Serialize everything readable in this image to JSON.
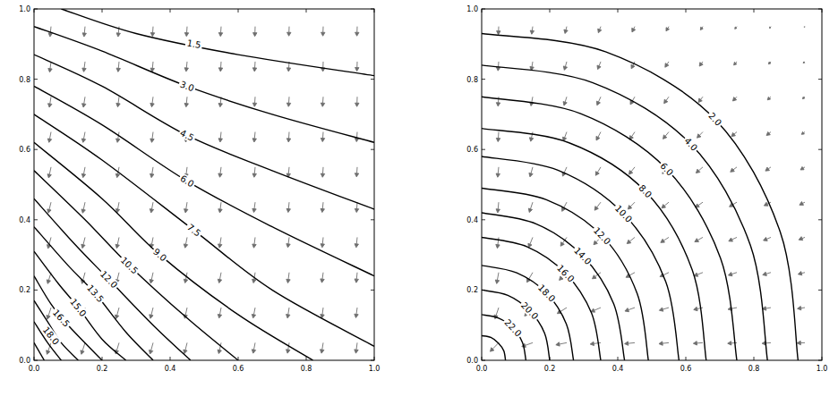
{
  "chart_data": [
    {
      "type": "contour",
      "color": "#000000",
      "xlim": [
        0,
        1
      ],
      "ylim": [
        0,
        1
      ],
      "xticks": [
        {
          "value": 0,
          "label": "0.0"
        },
        0.2,
        0.4,
        0.6,
        0.8,
        {
          "value": 1,
          "label": "1.0"
        }
      ],
      "yticks": [
        {
          "value": 0,
          "label": "0.0"
        },
        0.2,
        0.4,
        0.6,
        0.8,
        {
          "value": 1,
          "label": "1.0"
        }
      ],
      "contours": [
        {
          "label": "1.5",
          "label_at": [
            0.47,
            0.9
          ],
          "x": [
            0.08,
            0.3,
            0.6,
            1.0
          ],
          "y": [
            1.0,
            0.93,
            0.87,
            0.81
          ]
        },
        {
          "label": "3.0",
          "label_at": [
            0.45,
            0.78
          ],
          "x": [
            0,
            0.2,
            0.45,
            0.7,
            1.0
          ],
          "y": [
            0.95,
            0.88,
            0.78,
            0.7,
            0.62
          ]
        },
        {
          "label": "4.5",
          "label_at": [
            0.45,
            0.64
          ],
          "x": [
            0,
            0.2,
            0.45,
            0.7,
            1.0
          ],
          "y": [
            0.87,
            0.78,
            0.64,
            0.54,
            0.43
          ]
        },
        {
          "label": "6.0",
          "label_at": [
            0.45,
            0.51
          ],
          "x": [
            0,
            0.2,
            0.45,
            0.7,
            1.0
          ],
          "y": [
            0.78,
            0.67,
            0.51,
            0.38,
            0.24
          ]
        },
        {
          "label": "7.5",
          "label_at": [
            0.47,
            0.37
          ],
          "x": [
            0,
            0.2,
            0.47,
            0.7,
            1.0
          ],
          "y": [
            0.7,
            0.57,
            0.37,
            0.2,
            0.04
          ]
        },
        {
          "label": "9.0",
          "label_at": [
            0.37,
            0.3
          ],
          "x": [
            0,
            0.2,
            0.37,
            0.6,
            0.82
          ],
          "y": [
            0.62,
            0.46,
            0.3,
            0.13,
            0
          ]
        },
        {
          "label": "10.5",
          "label_at": [
            0.28,
            0.27
          ],
          "x": [
            0,
            0.15,
            0.28,
            0.45,
            0.6
          ],
          "y": [
            0.54,
            0.4,
            0.27,
            0.12,
            0
          ]
        },
        {
          "label": "12.0",
          "label_at": [
            0.22,
            0.23
          ],
          "x": [
            0,
            0.12,
            0.22,
            0.35,
            0.46
          ],
          "y": [
            0.46,
            0.33,
            0.23,
            0.1,
            0
          ]
        },
        {
          "label": "13.5",
          "label_at": [
            0.18,
            0.19
          ],
          "x": [
            0,
            0.1,
            0.18,
            0.27,
            0.35
          ],
          "y": [
            0.38,
            0.27,
            0.19,
            0.08,
            0
          ]
        },
        {
          "label": "15.0",
          "label_at": [
            0.13,
            0.15
          ],
          "x": [
            0,
            0.07,
            0.13,
            0.2,
            0.27
          ],
          "y": [
            0.31,
            0.22,
            0.15,
            0.06,
            0
          ]
        },
        {
          "label": "16.5",
          "label_at": [
            0.08,
            0.12
          ],
          "x": [
            0,
            0.05,
            0.1,
            0.2
          ],
          "y": [
            0.24,
            0.16,
            0.1,
            0
          ]
        },
        {
          "label": "18.0",
          "label_at": [
            0.05,
            0.07
          ],
          "x": [
            0,
            0.04,
            0.08,
            0.13
          ],
          "y": [
            0.17,
            0.11,
            0.05,
            0
          ]
        },
        {
          "x": [
            0,
            0.04,
            0.08
          ],
          "y": [
            0.11,
            0.05,
            0
          ]
        },
        {
          "x": [
            0,
            0.03
          ],
          "y": [
            0.05,
            0
          ]
        }
      ],
      "quiver": {
        "color": "#6e6e6e",
        "x": [
          0.05,
          0.15,
          0.25,
          0.35,
          0.45,
          0.55,
          0.65,
          0.75,
          0.85,
          0.95
        ],
        "y": [
          0.05,
          0.15,
          0.25,
          0.35,
          0.45,
          0.55,
          0.65,
          0.75,
          0.85,
          0.95
        ],
        "u": [
          [
            -0.012,
            -0.011,
            -0.01,
            -0.009,
            -0.008,
            -0.007,
            -0.006,
            -0.005,
            -0.005,
            -0.004
          ],
          [
            -0.011,
            -0.01,
            -0.009,
            -0.008,
            -0.007,
            -0.006,
            -0.006,
            -0.005,
            -0.004,
            -0.004
          ],
          [
            -0.01,
            -0.009,
            -0.008,
            -0.007,
            -0.006,
            -0.006,
            -0.005,
            -0.004,
            -0.004,
            -0.003
          ],
          [
            -0.009,
            -0.008,
            -0.007,
            -0.006,
            -0.006,
            -0.005,
            -0.004,
            -0.004,
            -0.003,
            -0.003
          ],
          [
            -0.008,
            -0.007,
            -0.006,
            -0.006,
            -0.005,
            -0.004,
            -0.004,
            -0.003,
            -0.003,
            -0.002
          ],
          [
            -0.007,
            -0.006,
            -0.006,
            -0.005,
            -0.004,
            -0.004,
            -0.003,
            -0.003,
            -0.002,
            -0.002
          ],
          [
            -0.006,
            -0.006,
            -0.005,
            -0.004,
            -0.004,
            -0.003,
            -0.003,
            -0.002,
            -0.002,
            -0.002
          ],
          [
            -0.005,
            -0.005,
            -0.004,
            -0.004,
            -0.003,
            -0.003,
            -0.002,
            -0.002,
            -0.002,
            -0.001
          ],
          [
            -0.004,
            -0.004,
            -0.003,
            -0.003,
            -0.003,
            -0.002,
            -0.002,
            -0.002,
            -0.001,
            -0.001
          ],
          [
            -0.003,
            -0.003,
            -0.003,
            -0.002,
            -0.002,
            -0.002,
            -0.001,
            -0.001,
            -0.001,
            -0.001
          ]
        ],
        "v": [
          [
            -0.033,
            -0.033,
            -0.032,
            -0.032,
            -0.031,
            -0.031,
            -0.03,
            -0.03,
            -0.03,
            -0.03
          ],
          [
            -0.033,
            -0.032,
            -0.032,
            -0.031,
            -0.031,
            -0.03,
            -0.03,
            -0.03,
            -0.03,
            -0.029
          ],
          [
            -0.032,
            -0.032,
            -0.031,
            -0.031,
            -0.03,
            -0.03,
            -0.03,
            -0.03,
            -0.029,
            -0.029
          ],
          [
            -0.032,
            -0.031,
            -0.031,
            -0.03,
            -0.03,
            -0.03,
            -0.03,
            -0.029,
            -0.029,
            -0.029
          ],
          [
            -0.031,
            -0.031,
            -0.03,
            -0.03,
            -0.03,
            -0.03,
            -0.029,
            -0.029,
            -0.029,
            -0.029
          ],
          [
            -0.031,
            -0.03,
            -0.03,
            -0.03,
            -0.03,
            -0.029,
            -0.029,
            -0.029,
            -0.029,
            -0.028
          ],
          [
            -0.03,
            -0.03,
            -0.03,
            -0.03,
            -0.029,
            -0.029,
            -0.029,
            -0.029,
            -0.028,
            -0.028
          ],
          [
            -0.03,
            -0.03,
            -0.029,
            -0.029,
            -0.029,
            -0.029,
            -0.028,
            -0.028,
            -0.028,
            -0.028
          ],
          [
            -0.03,
            -0.029,
            -0.029,
            -0.029,
            -0.028,
            -0.028,
            -0.028,
            -0.028,
            -0.028,
            -0.027
          ],
          [
            -0.029,
            -0.029,
            -0.029,
            -0.028,
            -0.028,
            -0.028,
            -0.028,
            -0.027,
            -0.027,
            -0.027
          ]
        ]
      }
    },
    {
      "type": "contour",
      "color": "#000000",
      "xlim": [
        0,
        1
      ],
      "ylim": [
        0,
        1
      ],
      "xticks": [
        {
          "value": 0,
          "label": "0.0"
        },
        0.2,
        0.4,
        0.6,
        0.8,
        {
          "value": 1,
          "label": "1.0"
        }
      ],
      "yticks": [
        {
          "value": 0,
          "label": "0.0"
        },
        0.2,
        0.4,
        0.6,
        0.8,
        {
          "value": 1,
          "label": "1.0"
        }
      ],
      "contours": [
        {
          "label": "2.0",
          "label_at": [
            0.686,
            0.686
          ],
          "x": [
            0.93,
            0.878,
            0.686,
            0.364,
            0
          ],
          "y": [
            0,
            0.364,
            0.686,
            0.878,
            0.93
          ]
        },
        {
          "label": "4.0",
          "label_at": [
            0.615,
            0.615
          ],
          "x": [
            0.84,
            0.79,
            0.615,
            0.327,
            0
          ],
          "y": [
            0,
            0.327,
            0.615,
            0.79,
            0.84
          ]
        },
        {
          "label": "6.0",
          "label_at": [
            0.544,
            0.544
          ],
          "x": [
            0.75,
            0.702,
            0.544,
            0.291,
            0
          ],
          "y": [
            0,
            0.291,
            0.544,
            0.702,
            0.75
          ]
        },
        {
          "label": "8.0",
          "label_at": [
            0.481,
            0.481
          ],
          "x": [
            0.66,
            0.619,
            0.481,
            0.257,
            0
          ],
          "y": [
            0,
            0.257,
            0.481,
            0.619,
            0.66
          ]
        },
        {
          "label": "10.0",
          "label_at": [
            0.417,
            0.417
          ],
          "x": [
            0.58,
            0.541,
            0.417,
            0.224,
            0
          ],
          "y": [
            0,
            0.224,
            0.417,
            0.541,
            0.58
          ]
        },
        {
          "label": "12.0",
          "label_at": [
            0.354,
            0.354
          ],
          "x": [
            0.49,
            0.457,
            0.354,
            0.19,
            0
          ],
          "y": [
            0,
            0.19,
            0.354,
            0.457,
            0.49
          ]
        },
        {
          "label": "14.0",
          "label_at": [
            0.297,
            0.297
          ],
          "x": [
            0.42,
            0.388,
            0.297,
            0.161,
            0
          ],
          "y": [
            0,
            0.161,
            0.297,
            0.388,
            0.42
          ]
        },
        {
          "label": "16.0",
          "label_at": [
            0.247,
            0.247
          ],
          "x": [
            0.35,
            0.323,
            0.247,
            0.134,
            0
          ],
          "y": [
            0,
            0.134,
            0.247,
            0.323,
            0.35
          ]
        },
        {
          "label": "18.0",
          "label_at": [
            0.191,
            0.191
          ],
          "x": [
            0.27,
            0.249,
            0.191,
            0.103,
            0
          ],
          "y": [
            0,
            0.103,
            0.191,
            0.249,
            0.27
          ]
        },
        {
          "label": "20.0",
          "label_at": [
            0.141,
            0.141
          ],
          "x": [
            0.2,
            0.185,
            0.141,
            0.077,
            0
          ],
          "y": [
            0,
            0.077,
            0.141,
            0.185,
            0.2
          ]
        },
        {
          "label": "22.0",
          "label_at": [
            0.092,
            0.092
          ],
          "x": [
            0.13,
            0.12,
            0.092,
            0.05,
            0
          ],
          "y": [
            0,
            0.05,
            0.092,
            0.12,
            0.13
          ]
        },
        {
          "x": [
            0.07,
            0.065,
            0.049,
            0.027,
            0
          ],
          "y": [
            0,
            0.027,
            0.049,
            0.065,
            0.07
          ]
        }
      ],
      "quiver": {
        "color": "#6e6e6e",
        "x": [
          0.05,
          0.15,
          0.25,
          0.35,
          0.45,
          0.55,
          0.65,
          0.75,
          0.85,
          0.95
        ],
        "y": [
          0.05,
          0.15,
          0.25,
          0.35,
          0.45,
          0.55,
          0.65,
          0.75,
          0.85,
          0.95
        ],
        "u": [
          [
            -0.025,
            -0.032,
            -0.032,
            -0.031,
            -0.03,
            -0.029,
            -0.028,
            -0.027,
            -0.026,
            -0.023
          ],
          [
            -0.011,
            -0.024,
            -0.028,
            -0.029,
            -0.029,
            -0.028,
            -0.027,
            -0.026,
            -0.025,
            -0.022
          ],
          [
            -0.006,
            -0.017,
            -0.022,
            -0.025,
            -0.026,
            -0.026,
            -0.026,
            -0.025,
            -0.024,
            -0.02
          ],
          [
            -0.004,
            -0.012,
            -0.018,
            -0.021,
            -0.023,
            -0.024,
            -0.024,
            -0.024,
            -0.022,
            -0.018
          ],
          [
            -0.003,
            -0.01,
            -0.014,
            -0.018,
            -0.02,
            -0.021,
            -0.022,
            -0.022,
            -0.02,
            -0.016
          ],
          [
            -0.003,
            -0.008,
            -0.012,
            -0.015,
            -0.017,
            -0.019,
            -0.02,
            -0.019,
            -0.016,
            -0.013
          ],
          [
            -0.002,
            -0.006,
            -0.01,
            -0.013,
            -0.015,
            -0.017,
            -0.017,
            -0.016,
            -0.013,
            -0.01
          ],
          [
            -0.002,
            -0.005,
            -0.008,
            -0.011,
            -0.013,
            -0.014,
            -0.013,
            -0.012,
            -0.01,
            -0.007
          ],
          [
            -0.002,
            -0.004,
            -0.007,
            -0.009,
            -0.01,
            -0.011,
            -0.01,
            -0.009,
            -0.007,
            -0.005
          ],
          [
            -0.001,
            -0.003,
            -0.005,
            -0.007,
            -0.008,
            -0.008,
            -0.007,
            -0.006,
            -0.004,
            -0.002
          ]
        ],
        "v": [
          [
            -0.025,
            -0.011,
            -0.006,
            -0.004,
            -0.003,
            -0.003,
            -0.002,
            -0.002,
            -0.002,
            -0.001
          ],
          [
            -0.032,
            -0.024,
            -0.017,
            -0.012,
            -0.01,
            -0.008,
            -0.006,
            -0.005,
            -0.004,
            -0.003
          ],
          [
            -0.032,
            -0.028,
            -0.022,
            -0.018,
            -0.014,
            -0.012,
            -0.01,
            -0.008,
            -0.007,
            -0.005
          ],
          [
            -0.031,
            -0.029,
            -0.025,
            -0.021,
            -0.018,
            -0.015,
            -0.013,
            -0.011,
            -0.009,
            -0.007
          ],
          [
            -0.03,
            -0.029,
            -0.026,
            -0.023,
            -0.02,
            -0.017,
            -0.015,
            -0.013,
            -0.01,
            -0.008
          ],
          [
            -0.029,
            -0.028,
            -0.026,
            -0.024,
            -0.021,
            -0.019,
            -0.017,
            -0.014,
            -0.011,
            -0.008
          ],
          [
            -0.028,
            -0.027,
            -0.026,
            -0.024,
            -0.022,
            -0.02,
            -0.017,
            -0.013,
            -0.01,
            -0.007
          ],
          [
            -0.027,
            -0.026,
            -0.025,
            -0.024,
            -0.022,
            -0.019,
            -0.016,
            -0.012,
            -0.009,
            -0.006
          ],
          [
            -0.026,
            -0.025,
            -0.024,
            -0.022,
            -0.02,
            -0.016,
            -0.013,
            -0.01,
            -0.007,
            -0.004
          ],
          [
            -0.023,
            -0.022,
            -0.02,
            -0.018,
            -0.016,
            -0.013,
            -0.01,
            -0.007,
            -0.005,
            -0.002
          ]
        ]
      }
    }
  ]
}
